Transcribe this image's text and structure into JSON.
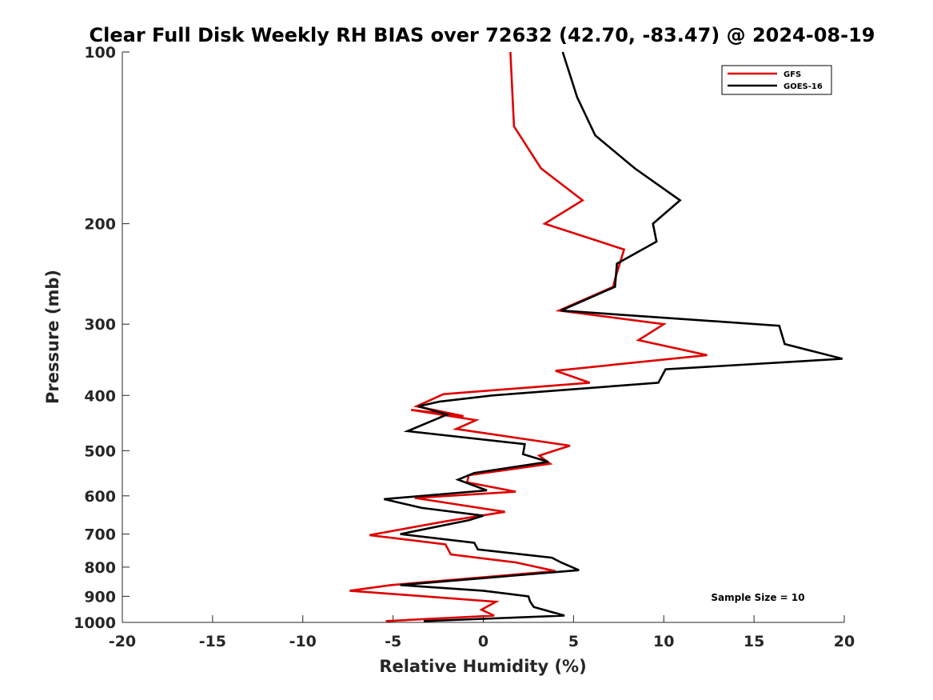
{
  "chart_data": {
    "type": "line",
    "title": "Clear Full Disk Weekly RH BIAS over 72632 (42.70, -83.47) @ 2024-08-19",
    "xlabel": "Relative Humidity (%)",
    "ylabel": "Pressure (mb)",
    "xlim": [
      -20,
      20
    ],
    "ylim": [
      100,
      1000
    ],
    "y_scale": "log",
    "y_reversed": true,
    "x_ticks": [
      -20,
      -15,
      -10,
      -5,
      0,
      5,
      10,
      15,
      20
    ],
    "x_tick_labels": [
      "-20",
      "-15",
      "-10",
      "-5",
      "0",
      "5",
      "10",
      "15",
      "20"
    ],
    "y_ticks": [
      100,
      200,
      300,
      400,
      500,
      600,
      700,
      800,
      900,
      1000
    ],
    "y_tick_labels": [
      "100",
      "200",
      "300",
      "400",
      "500",
      "600",
      "700",
      "800",
      "900",
      "1000"
    ],
    "grid": false,
    "legend_position": "top-right",
    "annotation": "Sample Size = 10",
    "series": [
      {
        "name": "GFS",
        "color": "#e00000",
        "points": [
          [
            1.5,
            100
          ],
          [
            1.7,
            135
          ],
          [
            3.2,
            160
          ],
          [
            5.5,
            182
          ],
          [
            3.4,
            200
          ],
          [
            7.8,
            222
          ],
          [
            7.3,
            250
          ],
          [
            7.2,
            258
          ],
          [
            4.2,
            284
          ],
          [
            10.0,
            300
          ],
          [
            8.6,
            320
          ],
          [
            12.4,
            340
          ],
          [
            4.0,
            362
          ],
          [
            5.9,
            380
          ],
          [
            -2.2,
            398
          ],
          [
            -3.7,
            418
          ],
          [
            -1.1,
            435
          ],
          [
            -4.0,
            424
          ],
          [
            -0.4,
            442
          ],
          [
            -1.5,
            458
          ],
          [
            4.8,
            490
          ],
          [
            3.1,
            510
          ],
          [
            3.7,
            527
          ],
          [
            -0.8,
            552
          ],
          [
            -0.9,
            568
          ],
          [
            1.8,
            590
          ],
          [
            -3.8,
            605
          ],
          [
            1.2,
            640
          ],
          [
            -2.1,
            665
          ],
          [
            -6.3,
            703
          ],
          [
            -2.1,
            730
          ],
          [
            -1.8,
            760
          ],
          [
            1.8,
            785
          ],
          [
            4.0,
            813
          ],
          [
            -5.1,
            860
          ],
          [
            -7.4,
            880
          ],
          [
            0.7,
            920
          ],
          [
            -0.1,
            950
          ],
          [
            0.6,
            973
          ],
          [
            -5.4,
            995
          ]
        ]
      },
      {
        "name": "GOES-16",
        "color": "#000000",
        "points": [
          [
            4.4,
            100
          ],
          [
            5.2,
            120
          ],
          [
            6.2,
            140
          ],
          [
            8.4,
            160
          ],
          [
            10.9,
            182
          ],
          [
            9.4,
            200
          ],
          [
            9.6,
            215
          ],
          [
            7.4,
            235
          ],
          [
            7.3,
            258
          ],
          [
            4.3,
            284
          ],
          [
            16.4,
            302
          ],
          [
            16.7,
            325
          ],
          [
            19.9,
            345
          ],
          [
            10.1,
            360
          ],
          [
            9.7,
            380
          ],
          [
            0.5,
            400
          ],
          [
            -2.4,
            410
          ],
          [
            -3.6,
            418
          ],
          [
            -2.0,
            432
          ],
          [
            -4.2,
            462
          ],
          [
            2.3,
            487
          ],
          [
            2.2,
            507
          ],
          [
            3.6,
            523
          ],
          [
            -0.5,
            547
          ],
          [
            -1.4,
            562
          ],
          [
            0.2,
            587
          ],
          [
            -5.5,
            608
          ],
          [
            -3.4,
            630
          ],
          [
            0.0,
            650
          ],
          [
            -0.8,
            662
          ],
          [
            -4.6,
            700
          ],
          [
            -0.5,
            725
          ],
          [
            -0.3,
            745
          ],
          [
            3.8,
            770
          ],
          [
            4.3,
            785
          ],
          [
            5.3,
            810
          ],
          [
            -4.6,
            860
          ],
          [
            0.0,
            880
          ],
          [
            2.5,
            900
          ],
          [
            2.6,
            920
          ],
          [
            2.8,
            940
          ],
          [
            4.5,
            973
          ],
          [
            -3.3,
            995
          ]
        ]
      }
    ]
  }
}
